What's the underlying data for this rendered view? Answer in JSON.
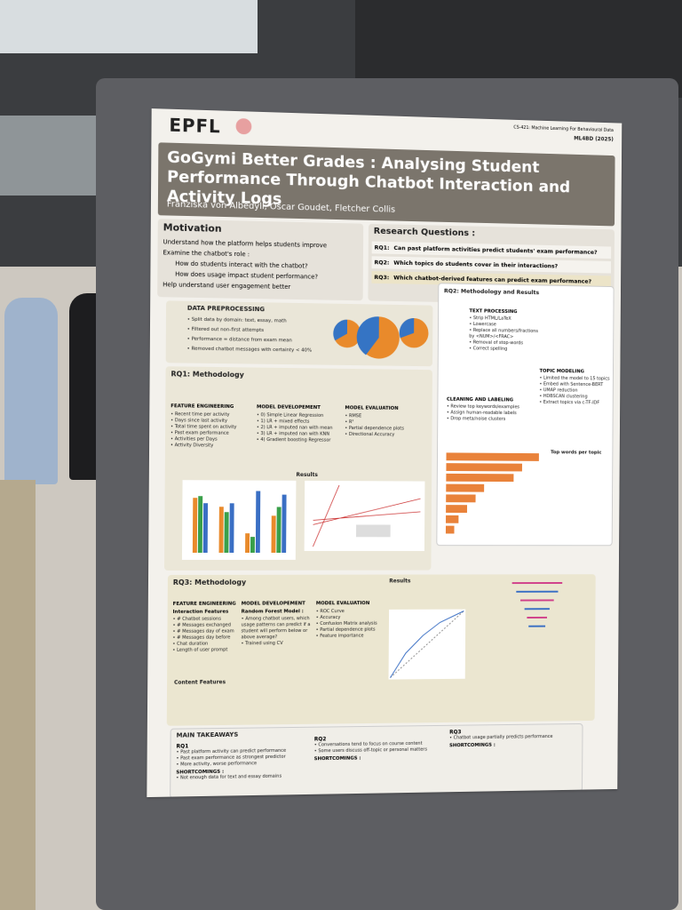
{
  "header": {
    "logo": "EPFL",
    "course": "CS-421: Machine Learning For Behavioural Data",
    "code": "ML4BD (2025)",
    "title": "GoGymi Better Grades : Analysing Student Performance Through Chatbot Interaction and Activity Logs",
    "authors": "Franziska von Albedyll, Oscar Goudet, Fletcher Collis"
  },
  "motivation": {
    "heading": "Motivation",
    "items": [
      "Understand how the platform helps students improve",
      "Examine the chatbot's role :",
      "How do students interact with the chatbot?",
      "How does usage impact student performance?",
      "Help understand user engagement better"
    ]
  },
  "research_questions": {
    "heading": "Research Questions :",
    "items": [
      {
        "label": "RQ1:",
        "text": "Can past platform activities predict students' exam performance?"
      },
      {
        "label": "RQ2:",
        "text": "Which topics do students cover in their interactions?"
      },
      {
        "label": "RQ3:",
        "text": "Which chatbot-derived features can predict exam performance?"
      }
    ]
  },
  "preprocessing": {
    "heading": "DATA PREPROCESSING",
    "items": [
      "Split data by domain: text, essay, math",
      "Filtered out non-first attempts",
      "Performance = distance from exam mean",
      "Removed chatbot messages with certainty < 40%"
    ]
  },
  "rq1": {
    "heading": "RQ1: Methodology",
    "columns": [
      {
        "heading": "FEATURE ENGINEERING",
        "items": [
          "Recent time per activity",
          "Days since last activity",
          "Total time spent on activity",
          "Past exam performance",
          "Activities per Days",
          "Activity Diversity"
        ]
      },
      {
        "heading": "MODEL DEVELOPEMENT",
        "items": [
          "0) Simple Linear Regression",
          "1) LR + mixed effects",
          "2) LR + imputed nan with mean",
          "3) LR + imputed nan with KNN",
          "4) Gradient boosting Regressor"
        ]
      },
      {
        "heading": "MODEL EVALUATION",
        "items": [
          "RMSE",
          "R²",
          "Partial dependence plots",
          "Directional Accuracy"
        ]
      }
    ],
    "results_heading": "Results"
  },
  "rq2": {
    "heading": "RQ2: Methodology and Results",
    "steps": [
      {
        "heading": "TEXT PROCESSING",
        "items": [
          "Strip HTML/LaTeX",
          "Lowercase",
          "Replace all numbers/fractions by <NUM>/<FRAC>",
          "Removal of stop-words",
          "Correct spelling"
        ]
      },
      {
        "heading": "TOPIC MODELING",
        "items": [
          "Limited the model to 15 topics",
          "Embed with Sentence-BERT",
          "UMAP reduction",
          "HDBSCAN clustering",
          "Extract topics via c-TF-IDF"
        ]
      },
      {
        "heading": "CLEANING AND LABELING",
        "items": [
          "Review top keywords/examples",
          "Assign human-readable labels",
          "Drop meta/noise clusters"
        ]
      }
    ],
    "top_words_heading": "Top words per topic"
  },
  "rq3": {
    "heading": "RQ3: Methodology",
    "columns": [
      {
        "heading": "FEATURE ENGINEERING",
        "sub": "Interaction Features",
        "items": [
          "# Chatbot sessions",
          "# Messages exchanged",
          "# Messages day of exam",
          "# Messages day before",
          "Chat duration",
          "Length of user prompt"
        ]
      },
      {
        "heading": "MODEL DEVELOPEMENT",
        "sub": "Random Forest Model :",
        "items": [
          "Among chatbot users, which usage patterns can predict if a student will perform below or above average?",
          "Trained using CV"
        ]
      },
      {
        "heading": "MODEL EVALUATION",
        "sub": "",
        "items": [
          "ROC Curve",
          "Accuracy",
          "Confusion Matrix analysis",
          "Partial dependence plots",
          "Feature importance"
        ]
      }
    ],
    "results_heading": "Results",
    "content_heading": "Content Features"
  },
  "takeaways": {
    "heading": "MAIN TAKEAWAYS",
    "blocks": [
      {
        "heading": "RQ1",
        "items": [
          "Past platform activity can predict performance",
          "Past exam performance as strongest predictor",
          "More activity, worse performance"
        ],
        "short_heading": "SHORTCOMINGS :",
        "short": [
          "Not enough data for text and essay domains"
        ]
      },
      {
        "heading": "RQ2",
        "items": [
          "Conversations tend to focus on course content",
          "Some users discuss off-topic or personal matters"
        ],
        "short_heading": "SHORTCOMINGS :",
        "short": []
      },
      {
        "heading": "RQ3",
        "items": [
          "Chatbot usage partially predicts performance"
        ],
        "short_heading": "SHORTCOMINGS :",
        "short": []
      }
    ]
  }
}
